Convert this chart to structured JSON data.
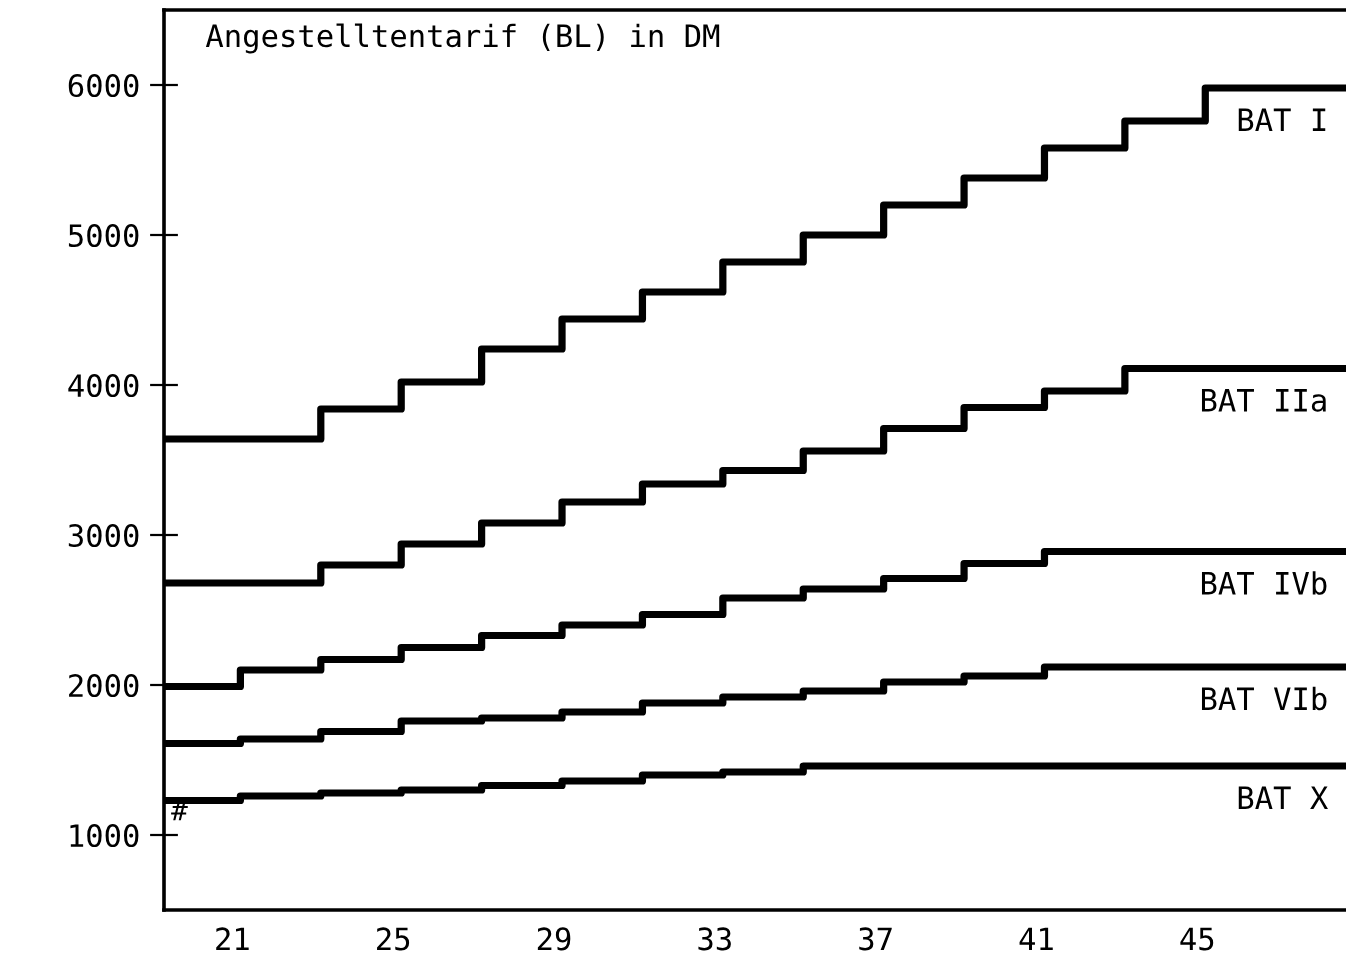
{
  "chart_data": {
    "type": "step",
    "title": "Angestelltentarif (BL) in DM",
    "xlim": [
      19.3,
      48.7
    ],
    "xticks": [
      21,
      25,
      29,
      33,
      37,
      41,
      45
    ],
    "ylim": [
      500,
      6500
    ],
    "yticks": [
      1000,
      2000,
      3000,
      4000,
      5000,
      6000
    ],
    "grid": false,
    "legend": false,
    "line_style": "solid",
    "marker": "none",
    "annotations": [
      "#"
    ],
    "series": [
      {
        "name": "BAT I",
        "color": "#000000",
        "x": [
          19.3,
          23.2,
          25.2,
          27.2,
          29.2,
          31.2,
          33.2,
          35.2,
          37.2,
          39.2,
          41.2,
          43.2,
          45.2,
          48.7
        ],
        "values": [
          3640,
          3840,
          4020,
          4240,
          4440,
          4620,
          4820,
          5000,
          5200,
          5380,
          5580,
          5760,
          5980,
          5980
        ]
      },
      {
        "name": "BAT IIa",
        "color": "#000000",
        "x": [
          19.3,
          23.2,
          25.2,
          27.2,
          29.2,
          31.2,
          33.2,
          35.2,
          37.2,
          39.2,
          41.2,
          43.2,
          48.7
        ],
        "values": [
          2680,
          2800,
          2940,
          3080,
          3220,
          3340,
          3430,
          3560,
          3710,
          3850,
          3960,
          4110,
          4110
        ]
      },
      {
        "name": "BAT IVb",
        "color": "#000000",
        "x": [
          19.3,
          21.2,
          23.2,
          25.2,
          27.2,
          29.2,
          31.2,
          33.2,
          35.2,
          37.2,
          39.2,
          41.2,
          48.7
        ],
        "values": [
          1990,
          2100,
          2170,
          2250,
          2330,
          2400,
          2470,
          2580,
          2640,
          2710,
          2810,
          2890,
          2890
        ]
      },
      {
        "name": "BAT VIb",
        "color": "#000000",
        "x": [
          19.3,
          21.2,
          23.2,
          25.2,
          27.2,
          29.2,
          31.2,
          33.2,
          35.2,
          37.2,
          39.2,
          41.2,
          48.7
        ],
        "values": [
          1610,
          1640,
          1690,
          1760,
          1780,
          1820,
          1880,
          1920,
          1960,
          2020,
          2060,
          2120,
          2120
        ]
      },
      {
        "name": "BAT X",
        "color": "#000000",
        "x": [
          19.3,
          21.2,
          23.2,
          25.2,
          27.2,
          29.2,
          31.2,
          33.2,
          35.2,
          48.7
        ],
        "values": [
          1230,
          1260,
          1280,
          1300,
          1330,
          1360,
          1400,
          1420,
          1460,
          1460
        ]
      }
    ]
  }
}
